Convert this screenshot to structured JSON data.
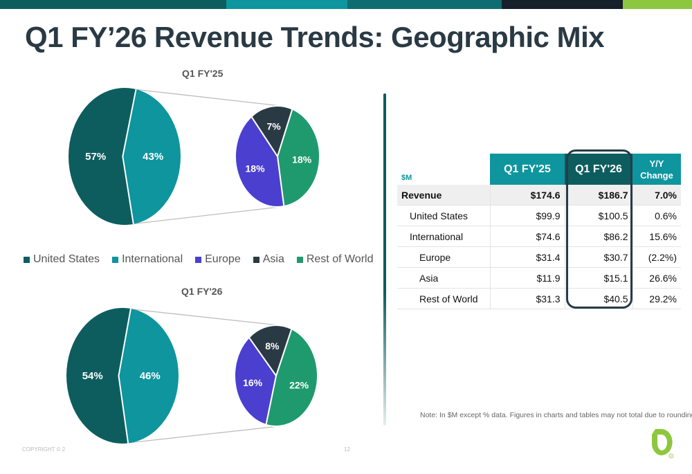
{
  "title": "Q1 FY’26 Revenue Trends: Geographic Mix",
  "colors": {
    "united_states": "#0e5d5e",
    "international": "#0e959e",
    "europe": "#4b3fd0",
    "asia": "#2a3a44",
    "rest_of_world": "#1e9a6e",
    "brand_green": "#8dc63f"
  },
  "legend": [
    "United States",
    "International",
    "Europe",
    "Asia",
    "Rest of World"
  ],
  "chart_data": [
    {
      "type": "pie",
      "title": "Q1 FY'25",
      "main_pie": {
        "labels": [
          "United States",
          "International"
        ],
        "values": [
          57,
          43
        ],
        "value_labels": [
          "57%",
          "43%"
        ]
      },
      "breakout_pie": {
        "labels": [
          "Europe",
          "Asia",
          "Rest of World"
        ],
        "values": [
          18,
          7,
          18
        ],
        "value_labels": [
          "18%",
          "7%",
          "18%"
        ]
      }
    },
    {
      "type": "pie",
      "title": "Q1 FY'26",
      "main_pie": {
        "labels": [
          "United States",
          "International"
        ],
        "values": [
          54,
          46
        ],
        "value_labels": [
          "54%",
          "46%"
        ]
      },
      "breakout_pie": {
        "labels": [
          "Europe",
          "Asia",
          "Rest of World"
        ],
        "values": [
          16,
          8,
          22
        ],
        "value_labels": [
          "16%",
          "8%",
          "22%"
        ]
      }
    }
  ],
  "table": {
    "unit": "$M",
    "headers": [
      "Q1 FY'25",
      "Q1 FY'26",
      "Y/Y Change"
    ],
    "rows": [
      {
        "label": "Revenue",
        "q1fy25": "$174.6",
        "q1fy26": "$186.7",
        "yy": "7.0%"
      },
      {
        "label": "United States",
        "q1fy25": "$99.9",
        "q1fy26": "$100.5",
        "yy": "0.6%"
      },
      {
        "label": "International",
        "q1fy25": "$74.6",
        "q1fy26": "$86.2",
        "yy": "15.6%"
      },
      {
        "label": "Europe",
        "q1fy25": "$31.4",
        "q1fy26": "$30.7",
        "yy": "(2.2%)"
      },
      {
        "label": "Asia",
        "q1fy25": "$11.9",
        "q1fy26": "$15.1",
        "yy": "26.6%"
      },
      {
        "label": "Rest of World",
        "q1fy25": "$31.3",
        "q1fy26": "$40.5",
        "yy": "29.2%"
      }
    ]
  },
  "note": "Note: In $M except % data. Figures in charts and tables may not total due to rounding.",
  "footer": {
    "copyright": "COPYRIGHT © 2",
    "page": "12"
  }
}
